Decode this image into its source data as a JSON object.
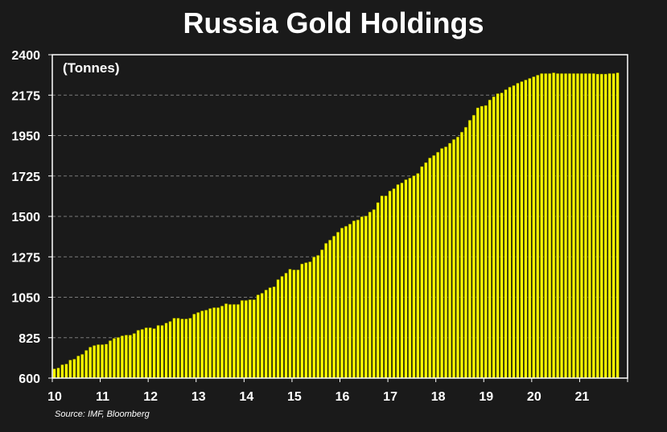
{
  "chart_data": {
    "type": "bar",
    "title": "Russia Gold Holdings",
    "unit_label": "(Tonnes)",
    "source": "Source: IMF, Bloomberg",
    "xlabel": "",
    "ylabel": "",
    "ylim": [
      600,
      2400
    ],
    "yticks": [
      600,
      825,
      1050,
      1275,
      1500,
      1725,
      1950,
      2175,
      2400
    ],
    "xticks": [
      "10",
      "11",
      "12",
      "13",
      "14",
      "15",
      "16",
      "17",
      "18",
      "19",
      "20",
      "21"
    ],
    "x_start": "2010-01",
    "frequency": "monthly",
    "grid": true,
    "bar_color": "#ffff00",
    "values": [
      652,
      657,
      675,
      679,
      701,
      706,
      724,
      733,
      755,
      773,
      782,
      787,
      787,
      790,
      809,
      822,
      827,
      836,
      840,
      840,
      849,
      867,
      872,
      881,
      881,
      876,
      894,
      894,
      907,
      916,
      934,
      934,
      930,
      930,
      934,
      957,
      966,
      975,
      979,
      988,
      993,
      993,
      1002,
      1015,
      1011,
      1011,
      1011,
      1033,
      1033,
      1037,
      1037,
      1064,
      1073,
      1091,
      1104,
      1109,
      1149,
      1167,
      1185,
      1207,
      1203,
      1203,
      1236,
      1243,
      1248,
      1275,
      1284,
      1315,
      1351,
      1369,
      1391,
      1413,
      1436,
      1446,
      1458,
      1476,
      1481,
      1499,
      1503,
      1525,
      1539,
      1578,
      1615,
      1615,
      1642,
      1655,
      1678,
      1687,
      1705,
      1714,
      1727,
      1740,
      1778,
      1800,
      1826,
      1840,
      1858,
      1879,
      1888,
      1908,
      1929,
      1943,
      1970,
      1997,
      2036,
      2064,
      2105,
      2114,
      2118,
      2149,
      2167,
      2184,
      2188,
      2206,
      2220,
      2229,
      2242,
      2251,
      2260,
      2269,
      2278,
      2287,
      2296,
      2296,
      2296,
      2300,
      2296,
      2296,
      2296,
      2296,
      2296,
      2296,
      2296,
      2296,
      2296,
      2296,
      2293,
      2293,
      2293,
      2296,
      2296,
      2300
    ]
  }
}
